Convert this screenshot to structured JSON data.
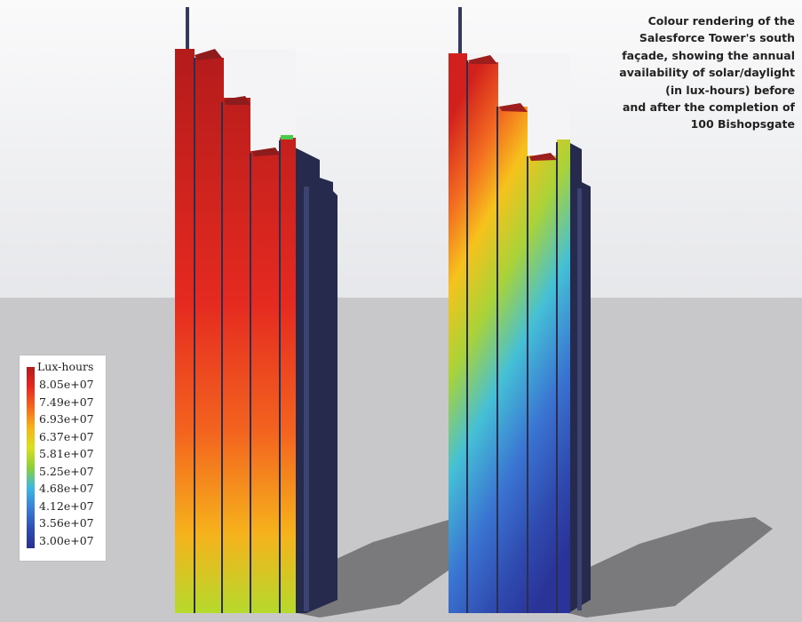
{
  "caption": {
    "lines": [
      "Colour rendering of the",
      "Salesforce Tower's south",
      "façade, showing the annual",
      "availability of solar/daylight",
      "(in lux-hours) before",
      "and after the completion of",
      "100 Bishopsgate"
    ]
  },
  "legend": {
    "title": "Lux-hours",
    "ticks": [
      "8.05e+07",
      "7.49e+07",
      "6.93e+07",
      "6.37e+07",
      "5.81e+07",
      "5.25e+07",
      "4.68e+07",
      "4.12e+07",
      "3.56e+07",
      "3.00e+07"
    ],
    "colors": [
      "#b31b1b",
      "#e8281f",
      "#f4681e",
      "#f6b21c",
      "#d9e021",
      "#8ccf3a",
      "#3cb8e2",
      "#3a7fd6",
      "#2f4db3",
      "#2a2f8f"
    ]
  },
  "colors": {
    "sky": "#f4f4f6",
    "ground": "#c8c8ca",
    "shadow": "#6c6c70",
    "side": "#262b4d"
  }
}
